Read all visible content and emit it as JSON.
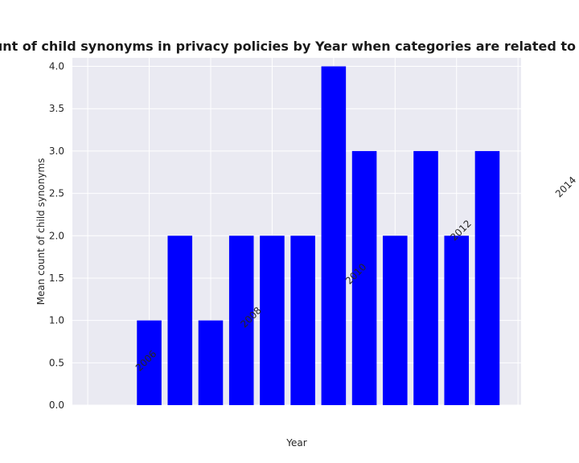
{
  "chart_data": {
    "type": "bar",
    "title": "Mean count of child synonyms in privacy policies by Year when categories are related to translators",
    "xlabel": "Year",
    "ylabel": "Mean count of child synonyms",
    "x": [
      2008,
      2009,
      2010,
      2011,
      2012,
      2013,
      2014,
      2015,
      2016,
      2017,
      2018,
      2019
    ],
    "values": [
      1,
      2,
      1,
      2,
      2,
      2,
      4,
      3,
      2,
      3,
      2,
      3
    ],
    "xlim": [
      2005.5,
      2020.1
    ],
    "ylim": [
      0,
      4.1
    ],
    "xticks": [
      2006,
      2008,
      2010,
      2012,
      2014,
      2016,
      2018,
      2020
    ],
    "yticks": [
      "0.0",
      "0.5",
      "1.0",
      "1.5",
      "2.0",
      "2.5",
      "3.0",
      "3.5",
      "4.0"
    ],
    "grid": true,
    "colors": {
      "bar": "#0000ff",
      "plot_background": "#eaeaf2",
      "grid": "#ffffff"
    }
  }
}
